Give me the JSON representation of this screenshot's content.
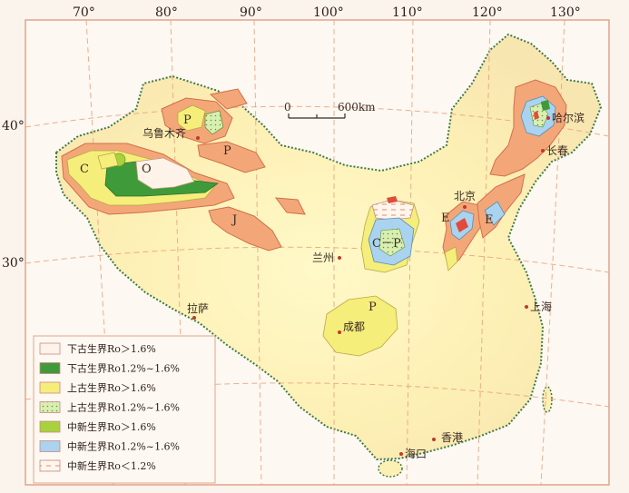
{
  "map": {
    "longitudes": [
      "70°",
      "80°",
      "90°",
      "100°",
      "110°",
      "120°",
      "130°"
    ],
    "latitudes": [
      "40°",
      "30°"
    ],
    "scale": {
      "zero": "0",
      "dist": "600km"
    },
    "cities": {
      "urumqi": "乌鲁木齐",
      "harbin": "哈尔滨",
      "changchun": "长春",
      "beijing": "北京",
      "lanzhou": "兰州",
      "shanghai": "上海",
      "lhasa": "拉萨",
      "chengdu": "成都",
      "hongkong": "香港",
      "haikou": "海口"
    },
    "basin_marks": {
      "p_junggar": "P",
      "p_turpan": "P",
      "c_tarim": "C",
      "o_tarim": "O",
      "j_qaidam": "J",
      "cp_ordos": "C－P",
      "p_sichuan": "P",
      "e_bohai": "E",
      "e_bohai2": "E"
    }
  },
  "legend": {
    "items": [
      {
        "label": "下古生界Ro＞1.6%",
        "color": "#fdf3e8",
        "pattern": "plain"
      },
      {
        "label": "下古生界Ro1.2%~1.6%",
        "color": "#3f9b3a",
        "pattern": "plain"
      },
      {
        "label": "上古生界Ro＞1.6%",
        "color": "#f5ee7a",
        "pattern": "plain"
      },
      {
        "label": "上古生界Ro1.2%~1.6%",
        "color": "#d8efb2",
        "pattern": "dots"
      },
      {
        "label": "中新生界Ro＞1.6%",
        "color": "#a7d23c",
        "pattern": "plain"
      },
      {
        "label": "中新生界Ro1.2%~1.6%",
        "color": "#a9d3ef",
        "pattern": "plain"
      },
      {
        "label": "中新生界Ro＜1.2%",
        "color": "#fff6ea",
        "pattern": "dash"
      }
    ]
  }
}
